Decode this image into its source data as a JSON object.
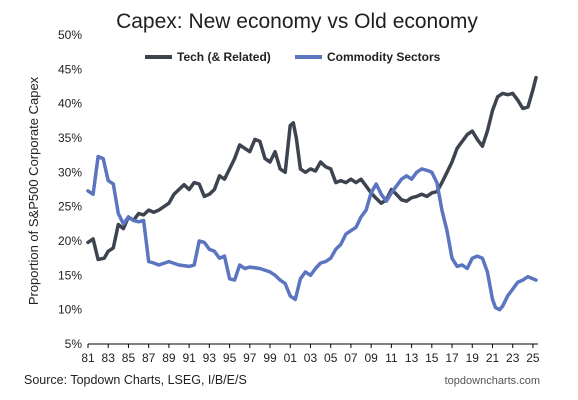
{
  "chart_data": {
    "type": "line",
    "title": "Capex: New economy vs Old economy",
    "ylabel": "Proportion of S&P500 Corporate Capex",
    "xlabel": "",
    "x_range": [
      1981,
      2025.5
    ],
    "ylim": [
      5,
      50
    ],
    "y_ticks": [
      5,
      10,
      15,
      20,
      25,
      30,
      35,
      40,
      45,
      50
    ],
    "y_tick_labels": [
      "5%",
      "10%",
      "15%",
      "20%",
      "25%",
      "30%",
      "35%",
      "40%",
      "45%",
      "50%"
    ],
    "x_ticks": [
      1981,
      1983,
      1985,
      1987,
      1989,
      1991,
      1993,
      1995,
      1997,
      1999,
      2001,
      2003,
      2005,
      2007,
      2009,
      2011,
      2013,
      2015,
      2017,
      2019,
      2021,
      2023,
      2025
    ],
    "x_tick_labels": [
      "81",
      "83",
      "85",
      "87",
      "89",
      "91",
      "93",
      "95",
      "97",
      "99",
      "01",
      "03",
      "05",
      "07",
      "09",
      "11",
      "13",
      "15",
      "17",
      "19",
      "21",
      "23",
      "25"
    ],
    "grid": false,
    "legend": "top-center",
    "colors": {
      "tech": "#3d4450",
      "commodity": "#5b75c0"
    },
    "series": [
      {
        "name": "Tech (& Related)",
        "points": [
          [
            1981.0,
            19.8
          ],
          [
            1981.5,
            20.3
          ],
          [
            1982.0,
            17.3
          ],
          [
            1982.6,
            17.5
          ],
          [
            1983.0,
            18.5
          ],
          [
            1983.5,
            19.0
          ],
          [
            1984.0,
            22.4
          ],
          [
            1984.5,
            21.8
          ],
          [
            1985.0,
            23.5
          ],
          [
            1985.5,
            23.0
          ],
          [
            1986.0,
            24.0
          ],
          [
            1986.5,
            23.8
          ],
          [
            1987.0,
            24.5
          ],
          [
            1987.5,
            24.2
          ],
          [
            1988.0,
            24.5
          ],
          [
            1988.5,
            25.0
          ],
          [
            1989.0,
            25.5
          ],
          [
            1989.5,
            26.8
          ],
          [
            1990.0,
            27.5
          ],
          [
            1990.5,
            28.2
          ],
          [
            1991.0,
            27.5
          ],
          [
            1991.5,
            28.5
          ],
          [
            1992.0,
            28.3
          ],
          [
            1992.5,
            26.5
          ],
          [
            1993.0,
            26.8
          ],
          [
            1993.5,
            27.5
          ],
          [
            1994.0,
            29.5
          ],
          [
            1994.5,
            29.0
          ],
          [
            1995.0,
            30.5
          ],
          [
            1995.5,
            32.0
          ],
          [
            1996.0,
            34.0
          ],
          [
            1996.5,
            33.5
          ],
          [
            1997.0,
            33.0
          ],
          [
            1997.5,
            34.8
          ],
          [
            1998.0,
            34.5
          ],
          [
            1998.5,
            32.0
          ],
          [
            1999.0,
            31.5
          ],
          [
            1999.5,
            33.0
          ],
          [
            2000.0,
            30.5
          ],
          [
            2000.5,
            30.0
          ],
          [
            2001.0,
            36.8
          ],
          [
            2001.3,
            37.2
          ],
          [
            2001.6,
            35.0
          ],
          [
            2002.0,
            30.5
          ],
          [
            2002.5,
            30.0
          ],
          [
            2003.0,
            30.5
          ],
          [
            2003.5,
            30.2
          ],
          [
            2004.0,
            31.5
          ],
          [
            2004.5,
            30.8
          ],
          [
            2005.0,
            30.5
          ],
          [
            2005.5,
            28.5
          ],
          [
            2006.0,
            28.8
          ],
          [
            2006.5,
            28.5
          ],
          [
            2007.0,
            29.0
          ],
          [
            2007.5,
            28.5
          ],
          [
            2008.0,
            29.0
          ],
          [
            2008.5,
            28.0
          ],
          [
            2009.0,
            27.0
          ],
          [
            2009.5,
            26.2
          ],
          [
            2010.0,
            25.5
          ],
          [
            2010.5,
            26.0
          ],
          [
            2011.0,
            27.5
          ],
          [
            2011.5,
            26.8
          ],
          [
            2012.0,
            26.0
          ],
          [
            2012.5,
            25.8
          ],
          [
            2013.0,
            26.3
          ],
          [
            2013.5,
            26.5
          ],
          [
            2014.0,
            26.8
          ],
          [
            2014.5,
            26.5
          ],
          [
            2015.0,
            27.0
          ],
          [
            2015.5,
            27.2
          ],
          [
            2016.0,
            28.5
          ],
          [
            2016.5,
            30.0
          ],
          [
            2017.0,
            31.5
          ],
          [
            2017.5,
            33.5
          ],
          [
            2018.0,
            34.5
          ],
          [
            2018.5,
            35.5
          ],
          [
            2019.0,
            36.0
          ],
          [
            2019.5,
            34.8
          ],
          [
            2020.0,
            33.8
          ],
          [
            2020.5,
            36.0
          ],
          [
            2021.0,
            39.0
          ],
          [
            2021.5,
            41.0
          ],
          [
            2022.0,
            41.5
          ],
          [
            2022.5,
            41.3
          ],
          [
            2023.0,
            41.5
          ],
          [
            2023.5,
            40.5
          ],
          [
            2024.0,
            39.3
          ],
          [
            2024.5,
            39.5
          ],
          [
            2025.0,
            42.0
          ],
          [
            2025.3,
            43.8
          ]
        ]
      },
      {
        "name": "Commodity Sectors",
        "points": [
          [
            1981.0,
            27.3
          ],
          [
            1981.5,
            26.8
          ],
          [
            1982.0,
            32.3
          ],
          [
            1982.5,
            32.0
          ],
          [
            1983.0,
            28.8
          ],
          [
            1983.5,
            28.3
          ],
          [
            1984.0,
            24.0
          ],
          [
            1984.5,
            22.5
          ],
          [
            1985.0,
            23.5
          ],
          [
            1985.5,
            23.0
          ],
          [
            1986.0,
            22.8
          ],
          [
            1986.5,
            23.0
          ],
          [
            1987.0,
            17.0
          ],
          [
            1987.5,
            16.8
          ],
          [
            1988.0,
            16.5
          ],
          [
            1989.0,
            17.0
          ],
          [
            1990.0,
            16.5
          ],
          [
            1991.0,
            16.3
          ],
          [
            1991.5,
            16.5
          ],
          [
            1992.0,
            20.0
          ],
          [
            1992.5,
            19.8
          ],
          [
            1993.0,
            18.8
          ],
          [
            1993.5,
            18.5
          ],
          [
            1994.0,
            17.5
          ],
          [
            1994.5,
            17.8
          ],
          [
            1995.0,
            14.5
          ],
          [
            1995.5,
            14.3
          ],
          [
            1996.0,
            16.5
          ],
          [
            1996.5,
            16.0
          ],
          [
            1997.0,
            16.2
          ],
          [
            1998.0,
            16.0
          ],
          [
            1999.0,
            15.5
          ],
          [
            1999.5,
            15.0
          ],
          [
            2000.0,
            14.3
          ],
          [
            2000.5,
            13.8
          ],
          [
            2001.0,
            12.0
          ],
          [
            2001.5,
            11.5
          ],
          [
            2002.0,
            14.5
          ],
          [
            2002.5,
            15.5
          ],
          [
            2003.0,
            15.0
          ],
          [
            2003.5,
            16.0
          ],
          [
            2004.0,
            16.8
          ],
          [
            2004.5,
            17.0
          ],
          [
            2005.0,
            17.5
          ],
          [
            2005.5,
            18.8
          ],
          [
            2006.0,
            19.5
          ],
          [
            2006.5,
            21.0
          ],
          [
            2007.0,
            21.5
          ],
          [
            2007.5,
            22.0
          ],
          [
            2008.0,
            23.5
          ],
          [
            2008.5,
            24.5
          ],
          [
            2009.0,
            27.0
          ],
          [
            2009.5,
            28.3
          ],
          [
            2010.0,
            26.8
          ],
          [
            2010.5,
            25.8
          ],
          [
            2011.0,
            27.0
          ],
          [
            2011.5,
            28.0
          ],
          [
            2012.0,
            29.0
          ],
          [
            2012.5,
            29.5
          ],
          [
            2013.0,
            29.0
          ],
          [
            2013.5,
            30.0
          ],
          [
            2014.0,
            30.5
          ],
          [
            2014.5,
            30.3
          ],
          [
            2015.0,
            30.0
          ],
          [
            2015.5,
            28.5
          ],
          [
            2016.0,
            24.5
          ],
          [
            2016.5,
            21.5
          ],
          [
            2017.0,
            17.5
          ],
          [
            2017.5,
            16.3
          ],
          [
            2018.0,
            16.5
          ],
          [
            2018.5,
            16.0
          ],
          [
            2019.0,
            17.5
          ],
          [
            2019.5,
            17.8
          ],
          [
            2020.0,
            17.5
          ],
          [
            2020.5,
            15.5
          ],
          [
            2021.0,
            11.5
          ],
          [
            2021.3,
            10.3
          ],
          [
            2021.7,
            10.0
          ],
          [
            2022.0,
            10.5
          ],
          [
            2022.5,
            12.0
          ],
          [
            2023.0,
            13.0
          ],
          [
            2023.5,
            14.0
          ],
          [
            2024.0,
            14.3
          ],
          [
            2024.5,
            14.8
          ],
          [
            2025.0,
            14.5
          ],
          [
            2025.3,
            14.3
          ]
        ]
      }
    ],
    "source": "Source: Topdown Charts, LSEG, I/B/E/S",
    "brand": "topdowncharts.com"
  }
}
